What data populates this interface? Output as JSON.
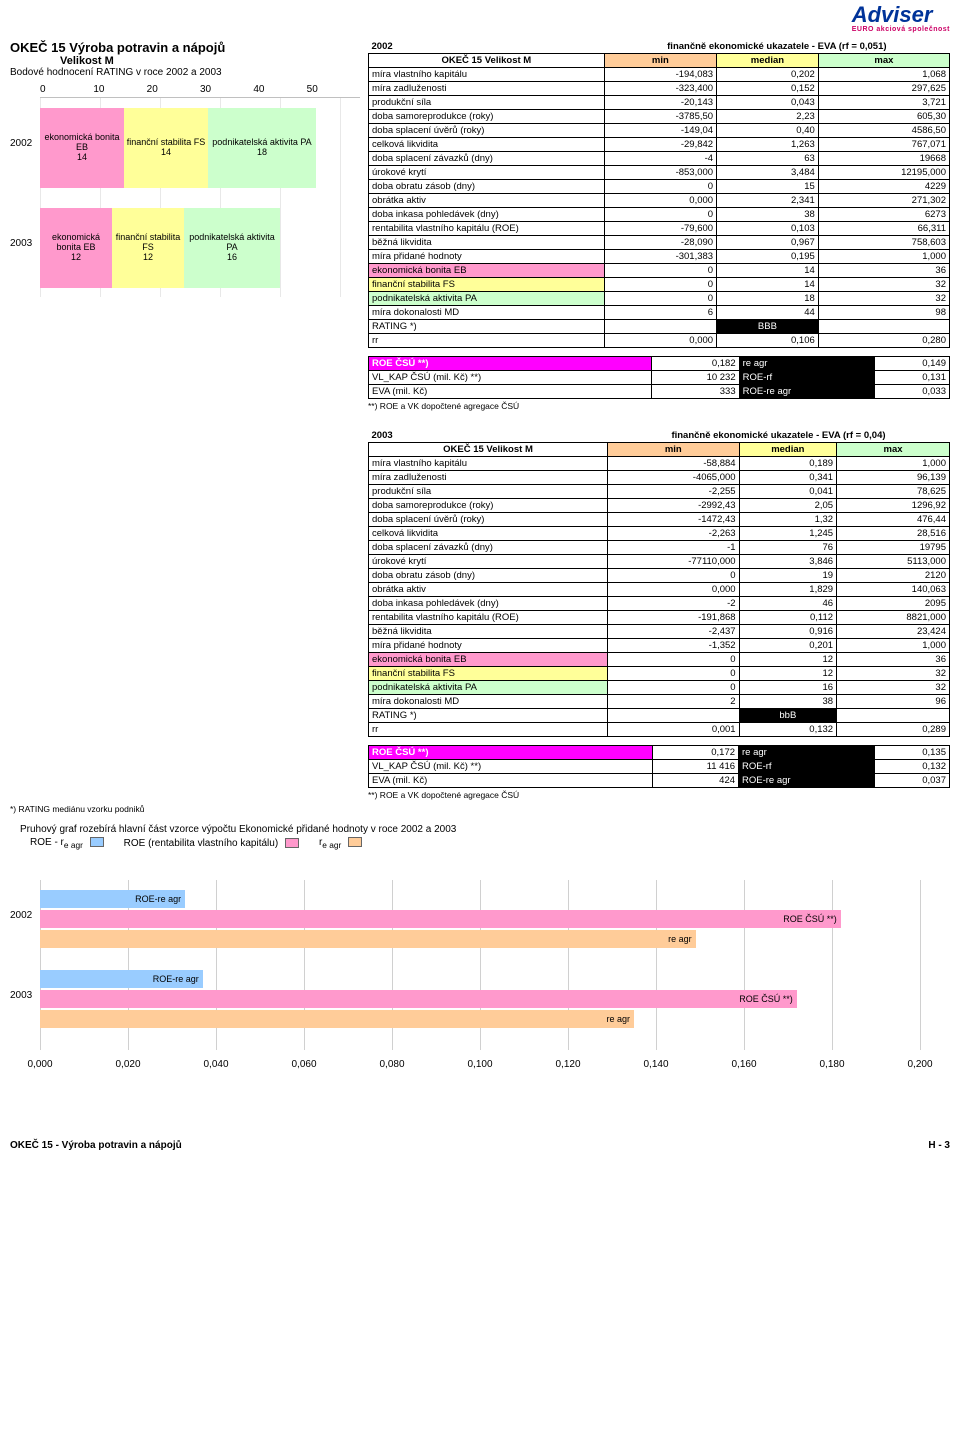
{
  "logo": {
    "name": "Adviser",
    "sub": "EURO akciová společnost"
  },
  "header": {
    "main": "OKEČ 15  Výroba potravin a nápojů",
    "sub": "Velikost M",
    "rating_caption": "Bodové hodnocení RATING v roce 2002 a 2003"
  },
  "stacked_chart": {
    "xlim": [
      0,
      50
    ],
    "xticks": [
      "0",
      "10",
      "20",
      "30",
      "40",
      "50"
    ],
    "years": [
      "2002",
      "2003"
    ],
    "colors": {
      "eb": "#ff99cc",
      "fs": "#ffff99",
      "pa": "#ccffcc"
    },
    "bars_2002": [
      {
        "key": "eb",
        "label": "ekonomická bonita EB",
        "value": "14",
        "w": 14
      },
      {
        "key": "fs",
        "label": "finanční stabilita FS",
        "value": "14",
        "w": 14
      },
      {
        "key": "pa",
        "label": "podnikatelská aktivita PA",
        "value": "18",
        "w": 18
      }
    ],
    "bars_2003": [
      {
        "key": "eb",
        "label": "ekonomická bonita EB",
        "value": "12",
        "w": 12
      },
      {
        "key": "fs",
        "label": "finanční stabilita FS",
        "value": "12",
        "w": 12
      },
      {
        "key": "pa",
        "label": "podnikatelská aktivita PA",
        "value": "16",
        "w": 16
      }
    ]
  },
  "table_2002": {
    "year": "2002",
    "right_title": "finančně ekonomické ukazatele - EVA (rf = 0,051)",
    "header_label": "OKEČ 15 Velikost M",
    "cols": [
      "min",
      "median",
      "max"
    ],
    "rows": [
      [
        "míra vlastního kapitálu",
        "-194,083",
        "0,202",
        "1,068"
      ],
      [
        "míra zadluženosti",
        "-323,400",
        "0,152",
        "297,625"
      ],
      [
        "produkční síla",
        "-20,143",
        "0,043",
        "3,721"
      ],
      [
        "doba samoreprodukce (roky)",
        "-3785,50",
        "2,23",
        "605,30"
      ],
      [
        "doba splacení úvěrů (roky)",
        "-149,04",
        "0,40",
        "4586,50"
      ],
      [
        "celková likvidita",
        "-29,842",
        "1,263",
        "767,071"
      ],
      [
        "doba splacení závazků (dny)",
        "-4",
        "63",
        "19668"
      ],
      [
        "úrokové krytí",
        "-853,000",
        "3,484",
        "12195,000"
      ],
      [
        "doba obratu zásob (dny)",
        "0",
        "15",
        "4229"
      ],
      [
        "obrátka aktiv",
        "0,000",
        "2,341",
        "271,302"
      ],
      [
        "doba inkasa pohledávek (dny)",
        "0",
        "38",
        "6273"
      ],
      [
        "rentabilita vlastního kapitálu (ROE)",
        "-79,600",
        "0,103",
        "66,311"
      ],
      [
        "běžná likvidita",
        "-28,090",
        "0,967",
        "758,603"
      ],
      [
        "míra přidané hodnoty",
        "-301,383",
        "0,195",
        "1,000"
      ],
      [
        "ekonomická bonita EB",
        "0",
        "14",
        "36",
        "eb"
      ],
      [
        "finanční stabilita FS",
        "0",
        "14",
        "32",
        "fs"
      ],
      [
        "podnikatelská aktivita PA",
        "0",
        "18",
        "32",
        "pa"
      ],
      [
        "míra dokonalosti MD",
        "6",
        "44",
        "98"
      ],
      [
        "RATING *)",
        "",
        "BBB",
        "",
        "rating"
      ],
      [
        "rr",
        "0,000",
        "0,106",
        "0,280"
      ]
    ]
  },
  "roe_2002": {
    "rows": [
      [
        "ROE ČSÚ **)",
        "0,182",
        "re agr",
        "0,149"
      ],
      [
        "VL_KAP ČSÚ (mil. Kč) **)",
        "10 232",
        "ROE-rf",
        "0,131"
      ],
      [
        "EVA (mil. Kč)",
        "333",
        "ROE-re agr",
        "0,033"
      ]
    ],
    "note": "**) ROE a VK dopočtené agregace ČSÚ"
  },
  "table_2003": {
    "year": "2003",
    "right_title": "finančně ekonomické ukazatele - EVA (rf = 0,04)",
    "header_label": "OKEČ 15 Velikost M",
    "cols": [
      "min",
      "median",
      "max"
    ],
    "rows": [
      [
        "míra vlastního kapitálu",
        "-58,884",
        "0,189",
        "1,000"
      ],
      [
        "míra zadluženosti",
        "-4065,000",
        "0,341",
        "96,139"
      ],
      [
        "produkční síla",
        "-2,255",
        "0,041",
        "78,625"
      ],
      [
        "doba samoreprodukce (roky)",
        "-2992,43",
        "2,05",
        "1296,92"
      ],
      [
        "doba splacení úvěrů (roky)",
        "-1472,43",
        "1,32",
        "476,44"
      ],
      [
        "celková likvidita",
        "-2,263",
        "1,245",
        "28,516"
      ],
      [
        "doba splacení závazků (dny)",
        "-1",
        "76",
        "19795"
      ],
      [
        "úrokové krytí",
        "-77110,000",
        "3,846",
        "5113,000"
      ],
      [
        "doba obratu zásob (dny)",
        "0",
        "19",
        "2120"
      ],
      [
        "obrátka aktiv",
        "0,000",
        "1,829",
        "140,063"
      ],
      [
        "doba inkasa pohledávek (dny)",
        "-2",
        "46",
        "2095"
      ],
      [
        "rentabilita vlastního kapitálu (ROE)",
        "-191,868",
        "0,112",
        "8821,000"
      ],
      [
        "běžná likvidita",
        "-2,437",
        "0,916",
        "23,424"
      ],
      [
        "míra přidané hodnoty",
        "-1,352",
        "0,201",
        "1,000"
      ],
      [
        "ekonomická bonita EB",
        "0",
        "12",
        "36",
        "eb"
      ],
      [
        "finanční stabilita FS",
        "0",
        "12",
        "32",
        "fs"
      ],
      [
        "podnikatelská aktivita PA",
        "0",
        "16",
        "32",
        "pa"
      ],
      [
        "míra dokonalosti MD",
        "2",
        "38",
        "96"
      ],
      [
        "RATING *)",
        "",
        "bbB",
        "",
        "rating"
      ],
      [
        "rr",
        "0,001",
        "0,132",
        "0,289"
      ]
    ]
  },
  "roe_2003": {
    "rows": [
      [
        "ROE ČSÚ **)",
        "0,172",
        "re agr",
        "0,135"
      ],
      [
        "VL_KAP ČSÚ (mil. Kč) **)",
        "11 416",
        "ROE-rf",
        "0,132"
      ],
      [
        "EVA (mil. Kč)",
        "424",
        "ROE-re agr",
        "0,037"
      ]
    ],
    "note": "**) ROE a VK dopočtené agregace ČSÚ"
  },
  "footnote_left": "*) RATING mediánu vzorku podniků",
  "caption": "Pruhový graf rozebírá hlavní část vzorce výpočtu Ekonomické přidané hodnoty v roce 2002 a 2003",
  "legend": {
    "items": [
      {
        "label": "ROE - r",
        "sub": "e agr",
        "swatch": "sw-blue"
      },
      {
        "label": "ROE (rentabilita vlastního kapitálu)",
        "swatch": "sw-pink"
      },
      {
        "label": "r",
        "sub": "e agr",
        "swatch": "sw-orange"
      }
    ]
  },
  "bottom_chart": {
    "xlim": [
      0,
      0.2
    ],
    "xticks": [
      "0,000",
      "0,020",
      "0,040",
      "0,060",
      "0,080",
      "0,100",
      "0,120",
      "0,140",
      "0,160",
      "0,180",
      "0,200"
    ],
    "years": [
      "2002",
      "2003"
    ],
    "colors": {
      "blue": "#99ccff",
      "pink": "#ff99cc",
      "orange": "#ffcc99"
    },
    "bars_2002": [
      {
        "cls": "bc-blue",
        "label": "ROE-re agr",
        "v": 0.033
      },
      {
        "cls": "bc-pink",
        "label": "ROE ČSÚ **)",
        "v": 0.182
      },
      {
        "cls": "bc-orange",
        "label": "re agr",
        "v": 0.149
      }
    ],
    "bars_2003": [
      {
        "cls": "bc-blue",
        "label": "ROE-re agr",
        "v": 0.037
      },
      {
        "cls": "bc-pink",
        "label": "ROE ČSÚ **)",
        "v": 0.172
      },
      {
        "cls": "bc-orange",
        "label": "re agr",
        "v": 0.135
      }
    ]
  },
  "footer": {
    "left": "OKEČ 15 - Výroba potravin a nápojů",
    "right": "H - 3"
  }
}
